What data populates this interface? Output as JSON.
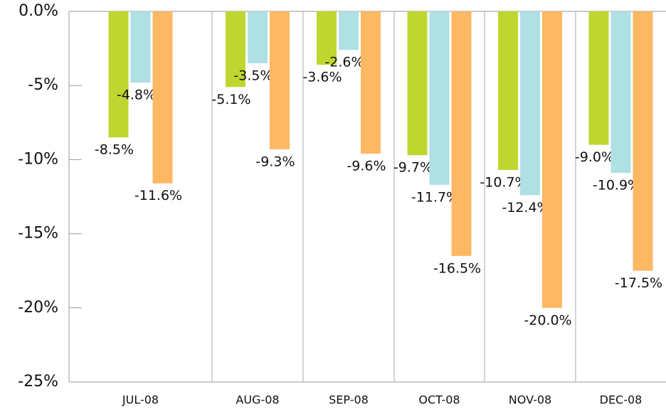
{
  "chart_data": {
    "type": "bar",
    "categories": [
      "JUL-08",
      "AUG-08",
      "SEP-08",
      "OCT-08",
      "NOV-08",
      "DEC-08"
    ],
    "series": [
      {
        "color": "#bfd630",
        "values": [
          -8.5,
          -5.1,
          -3.6,
          -9.7,
          -10.7,
          -9.0
        ],
        "value_labels": [
          "-8.5%",
          "-5.1%",
          "-3.6%",
          "-9.7%",
          "-10.7%",
          "-9.0%"
        ]
      },
      {
        "color": "#aee0e4",
        "values": [
          -4.8,
          -3.5,
          -2.6,
          -11.7,
          -12.4,
          -10.9
        ],
        "value_labels": [
          "-4.8%",
          "-3.5%",
          "-2.6%",
          "-11.7%",
          "-12.4%",
          "-10.9%"
        ]
      },
      {
        "color": "#fdb863",
        "values": [
          -11.6,
          -9.3,
          -9.6,
          -16.5,
          -20.0,
          -17.5
        ],
        "value_labels": [
          "-11.6%",
          "-9.3%",
          "-9.6%",
          "-16.5%",
          "-20.0%",
          "-17.5%"
        ]
      }
    ],
    "ylim": [
      -25,
      0
    ],
    "yticks": [
      {
        "value": 0,
        "label": "0.0%"
      },
      {
        "value": -5,
        "label": "-5%"
      },
      {
        "value": -10,
        "label": "-10%"
      },
      {
        "value": -15,
        "label": "-15%"
      },
      {
        "value": -20,
        "label": "-20%"
      },
      {
        "value": -25,
        "label": "-25%"
      }
    ],
    "grid": false
  }
}
